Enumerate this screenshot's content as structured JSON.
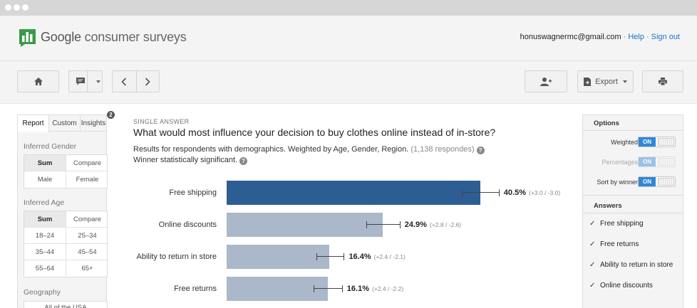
{
  "header": {
    "logo_google": "Google",
    "logo_product": "consumer surveys",
    "account_email": "honuswagnermc@gmail.com",
    "separator": "·",
    "help_link": "Help",
    "signout_link": "Sign out"
  },
  "toolbar": {
    "export_label": "Export"
  },
  "left_panel": {
    "tabs": [
      "Report",
      "Custom",
      "Insights"
    ],
    "insights_badge": "2",
    "gender": {
      "label": "Inferred Gender",
      "cells": [
        "Sum",
        "Compare",
        "Male",
        "Female"
      ]
    },
    "age": {
      "label": "Inferred Age",
      "cells": [
        "Sum",
        "Compare",
        "18–24",
        "25–34",
        "35–44",
        "45–54",
        "55–64",
        "65+"
      ]
    },
    "geography": {
      "label": "Geography",
      "first_item": "All of the USA"
    }
  },
  "main": {
    "question_type": "SINGLE ANSWER",
    "question": "What would most influence your decision to buy clothes online instead of in-store?",
    "results_text": "Results for respondents with demographics. Weighted by Age, Gender, Region.",
    "respondents": "(1,138 respondes)",
    "winner_text": "Winner statistically significant."
  },
  "chart_data": {
    "type": "bar",
    "orientation": "horizontal",
    "categories": [
      "Free shipping",
      "Online discounts",
      "Ability to return in store",
      "Free returns"
    ],
    "values": [
      40.5,
      24.9,
      16.4,
      16.1
    ],
    "value_labels": [
      "40.5%",
      "24.9%",
      "16.4%",
      "16.1%"
    ],
    "error_plus": [
      3.0,
      2.8,
      2.4,
      2.4
    ],
    "error_minus": [
      3.0,
      2.6,
      2.1,
      2.2
    ],
    "ci_labels": [
      "(+3.0 / -3.0)",
      "(+2.8 / -2.6)",
      "(+2.4 / -2.1)",
      "(+2.4 / -2.2)"
    ],
    "winner_index": 0,
    "colors": {
      "winner": "#2c5e93",
      "other": "#aab8ca"
    }
  },
  "right_panel": {
    "options_title": "Options",
    "toggles": [
      {
        "label": "Weighted",
        "state": "ON",
        "disabled": false
      },
      {
        "label": "Percentages",
        "state": "ON",
        "disabled": true
      },
      {
        "label": "Sort by winner",
        "state": "ON",
        "disabled": false
      }
    ],
    "answers_title": "Answers",
    "answers": [
      "Free shipping",
      "Free returns",
      "Ability to return in store",
      "Online discounts"
    ]
  },
  "colors": {
    "accent": "#2f87d8",
    "link": "#1a73c8",
    "logo_green": "#3a9a46"
  }
}
